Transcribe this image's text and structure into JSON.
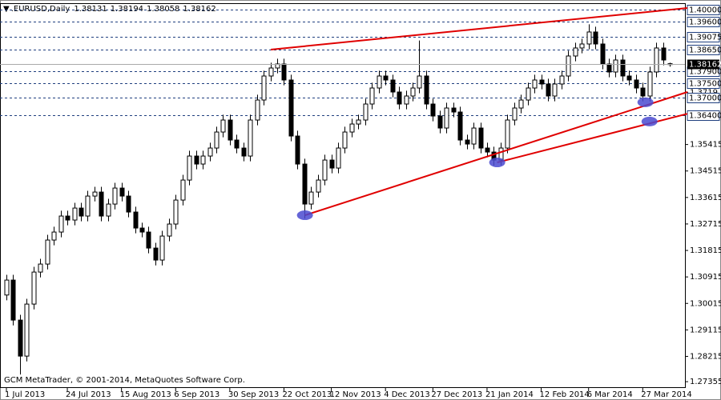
{
  "chart_data": {
    "type": "candlestick",
    "title": ".EURUSD,Daily",
    "footer": "GCM MetaTrader, © 2001-2014, MetaQuotes Software Corp.",
    "ylim": [
      1.2714,
      1.4019
    ],
    "xlim": [
      0,
      100.6
    ],
    "yticks": [
      1.3719,
      1.35415,
      1.34515,
      1.33615,
      1.32715,
      1.31815,
      1.30915,
      1.30015,
      1.29115,
      1.28215,
      1.27355
    ],
    "levels": [
      {
        "value": 1.4,
        "label": "1.40000"
      },
      {
        "value": 1.396,
        "label": "1.39600"
      },
      1.39075,
      {
        "value": 1.3865,
        "label": "1.38650"
      },
      {
        "value": 1.379,
        "label": "1.37900"
      },
      {
        "value": 1.375,
        "label": "1.37500"
      },
      {
        "value": 1.37,
        "label": "1.37000"
      },
      {
        "value": 1.364,
        "label": "1.36400"
      }
    ],
    "xticks": [
      {
        "value": 0,
        "label": "1 Jul 2013"
      },
      {
        "value": 9,
        "label": "24 Jul 2013"
      },
      {
        "value": 17,
        "label": "15 Aug 2013"
      },
      {
        "value": 25,
        "label": "6 Sep 2013"
      },
      {
        "value": 33,
        "label": "30 Sep 2013"
      },
      {
        "value": 41,
        "label": "22 Oct 2013"
      },
      {
        "value": 48,
        "label": "12 Nov 2013"
      },
      {
        "value": 56,
        "label": "4 Dec 2013"
      },
      {
        "value": 63,
        "label": "27 Dec 2013"
      },
      {
        "value": 71,
        "label": "21 Jan 2014"
      },
      {
        "value": 79,
        "label": "12 Feb 2014"
      },
      {
        "value": 86,
        "label": "6 Mar 2014"
      },
      {
        "value": 94,
        "label": "27 Mar 2014"
      }
    ],
    "color": "#000000",
    "trend_color": "#e00000",
    "marker_color": "#4a4ad0",
    "candles": {
      "open": [
        1.303,
        1.30808,
        1.29448,
        1.28224,
        1.29992,
        1.3108,
        1.31352,
        1.32168,
        1.3244,
        1.32984,
        1.32848,
        1.33255,
        1.32984,
        1.33663,
        1.33799,
        1.32984,
        1.33391,
        1.33935,
        1.33663,
        1.3312,
        1.32576,
        1.3244,
        1.31896,
        1.31488,
        1.32304,
        1.32712,
        1.33527,
        1.34207,
        1.35023,
        1.34751,
        1.35023,
        1.35295,
        1.35839,
        1.36247,
        1.35567,
        1.35295,
        1.35023,
        1.36247,
        1.36927,
        1.37743,
        1.38015,
        1.38151,
        1.37607,
        1.35703,
        1.34751,
        1.33391,
        1.33799,
        1.34207,
        1.34887,
        1.34615,
        1.35295,
        1.35839,
        1.36111,
        1.36247,
        1.36791,
        1.37335,
        1.37743,
        1.37607,
        1.37199,
        1.36791,
        1.37063,
        1.37335,
        1.37743,
        1.36791,
        1.36383,
        1.35975,
        1.36655,
        1.36519,
        1.35567,
        1.35431,
        1.35975,
        1.35295,
        1.35159,
        1.34887,
        1.35295,
        1.36247,
        1.36655,
        1.36927,
        1.37335,
        1.37607,
        1.37471,
        1.37063,
        1.37471,
        1.37743,
        1.38423,
        1.38695,
        1.38831,
        1.39239,
        1.38831,
        1.38151,
        1.37879,
        1.38287,
        1.37743,
        1.37607,
        1.37335,
        1.37063,
        1.37879,
        1.38695,
        1.38131
      ],
      "high": [
        1.30988,
        1.30988,
        1.29628,
        1.30172,
        1.3126,
        1.31532,
        1.32348,
        1.3262,
        1.33164,
        1.33164,
        1.33435,
        1.33435,
        1.33843,
        1.33979,
        1.33979,
        1.33571,
        1.34115,
        1.34115,
        1.33843,
        1.333,
        1.32756,
        1.3262,
        1.32076,
        1.32484,
        1.32892,
        1.33707,
        1.34387,
        1.35203,
        1.35203,
        1.35203,
        1.35475,
        1.36019,
        1.36427,
        1.36427,
        1.35747,
        1.35475,
        1.36427,
        1.37107,
        1.37923,
        1.38195,
        1.38331,
        1.38331,
        1.37787,
        1.35883,
        1.34931,
        1.33979,
        1.34387,
        1.35067,
        1.35067,
        1.35475,
        1.36019,
        1.36291,
        1.36427,
        1.36971,
        1.37515,
        1.37923,
        1.37923,
        1.37787,
        1.37379,
        1.37243,
        1.37515,
        1.3895,
        1.37923,
        1.36971,
        1.36563,
        1.36835,
        1.36835,
        1.36699,
        1.35747,
        1.36155,
        1.36155,
        1.35475,
        1.35339,
        1.35475,
        1.36427,
        1.36835,
        1.37107,
        1.37515,
        1.37787,
        1.37787,
        1.37651,
        1.37651,
        1.37923,
        1.38603,
        1.38875,
        1.39011,
        1.395,
        1.39419,
        1.39011,
        1.38331,
        1.38467,
        1.38467,
        1.37923,
        1.37787,
        1.37515,
        1.38059,
        1.38875,
        1.38875,
        1.38194
      ],
      "low": [
        1.3012,
        1.29268,
        1.276,
        1.28044,
        1.29812,
        1.309,
        1.31172,
        1.31988,
        1.3226,
        1.32668,
        1.32668,
        1.32804,
        1.32804,
        1.33483,
        1.32804,
        1.32804,
        1.33211,
        1.33483,
        1.3294,
        1.32396,
        1.3226,
        1.31716,
        1.31308,
        1.31308,
        1.32124,
        1.32532,
        1.33347,
        1.34027,
        1.34571,
        1.34571,
        1.34843,
        1.35115,
        1.35659,
        1.35387,
        1.35115,
        1.34843,
        1.34843,
        1.36067,
        1.36747,
        1.37563,
        1.37835,
        1.37427,
        1.35523,
        1.34571,
        1.329,
        1.33211,
        1.33619,
        1.34027,
        1.34435,
        1.34435,
        1.35115,
        1.35659,
        1.35931,
        1.36067,
        1.36611,
        1.37155,
        1.37427,
        1.37019,
        1.36611,
        1.36611,
        1.36883,
        1.37155,
        1.36611,
        1.36203,
        1.35795,
        1.35795,
        1.36339,
        1.35387,
        1.35251,
        1.35251,
        1.35115,
        1.34979,
        1.347,
        1.34707,
        1.35115,
        1.36067,
        1.36475,
        1.36747,
        1.37155,
        1.37291,
        1.36883,
        1.36883,
        1.37291,
        1.37563,
        1.38243,
        1.38515,
        1.38651,
        1.38651,
        1.37971,
        1.37699,
        1.37699,
        1.37563,
        1.37427,
        1.37155,
        1.36883,
        1.36883,
        1.37699,
        1.38107,
        1.38058
      ],
      "close": [
        1.30808,
        1.29448,
        1.28224,
        1.29992,
        1.3108,
        1.31352,
        1.32168,
        1.3244,
        1.32984,
        1.32848,
        1.33255,
        1.32984,
        1.33663,
        1.33799,
        1.32984,
        1.33391,
        1.33935,
        1.33663,
        1.3312,
        1.32576,
        1.3244,
        1.31896,
        1.31488,
        1.32304,
        1.32712,
        1.33527,
        1.34207,
        1.35023,
        1.34751,
        1.35023,
        1.35295,
        1.35839,
        1.36247,
        1.35567,
        1.35295,
        1.35023,
        1.36247,
        1.36927,
        1.37743,
        1.38015,
        1.38151,
        1.37607,
        1.35703,
        1.34751,
        1.33391,
        1.33799,
        1.34207,
        1.34887,
        1.34615,
        1.35295,
        1.35839,
        1.36111,
        1.36247,
        1.36791,
        1.37335,
        1.37743,
        1.37607,
        1.37199,
        1.36791,
        1.37063,
        1.37335,
        1.37743,
        1.36791,
        1.36383,
        1.35975,
        1.36655,
        1.36519,
        1.35567,
        1.35431,
        1.35975,
        1.35295,
        1.35159,
        1.34887,
        1.35295,
        1.36247,
        1.36655,
        1.36927,
        1.37335,
        1.37607,
        1.37471,
        1.37063,
        1.37471,
        1.37743,
        1.38423,
        1.38695,
        1.38831,
        1.39239,
        1.38831,
        1.38151,
        1.37879,
        1.38287,
        1.37743,
        1.37607,
        1.37335,
        1.37063,
        1.37879,
        1.38695,
        1.38287,
        1.38162
      ]
    },
    "trendlines": [
      {
        "x": [
          39.05,
          100.6
        ],
        "y": [
          1.38641,
          1.40054
        ]
      },
      {
        "x": [
          44.1,
          100.6
        ],
        "y": [
          1.33011,
          1.37199
        ]
      },
      {
        "x": [
          72.5,
          100.6
        ],
        "y": [
          1.34806,
          1.36461
        ]
      }
    ],
    "markers": [
      {
        "x": 44.1,
        "y": 1.33011
      },
      {
        "x": 72.5,
        "y": 1.34806
      },
      {
        "x": 94.4,
        "y": 1.3685
      },
      {
        "x": 95.0,
        "y": 1.36197
      }
    ]
  }
}
